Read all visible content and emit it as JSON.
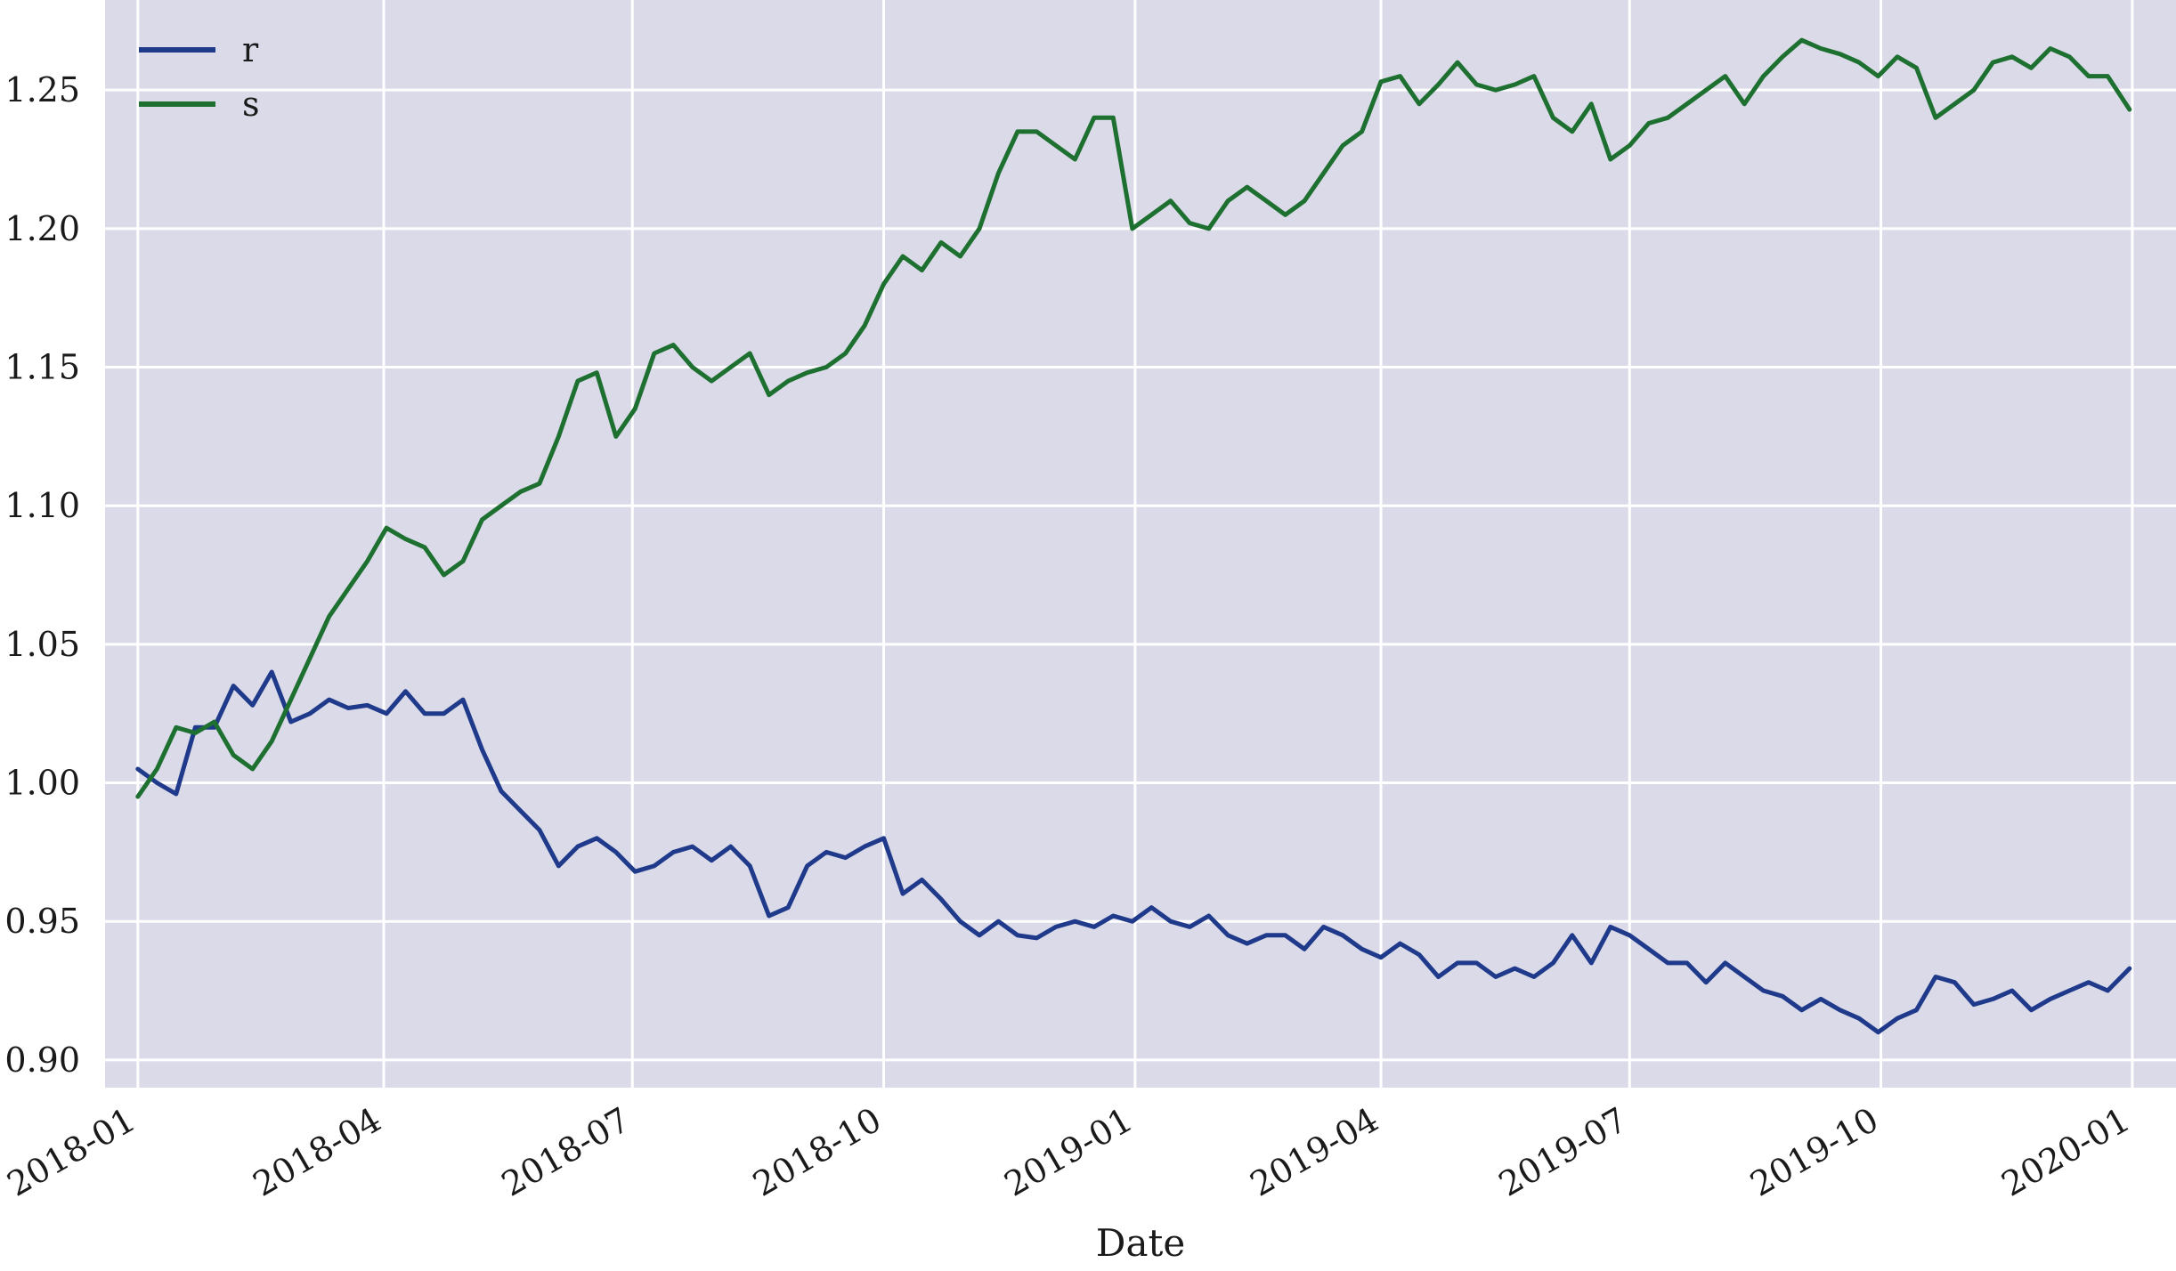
{
  "chart_data": {
    "type": "line",
    "xlabel": "Date",
    "ylabel": "",
    "title": "",
    "x_axis_type": "date",
    "xlim": [
      "2017-12-20",
      "2020-01-17"
    ],
    "ylim": [
      0.89,
      1.2825
    ],
    "grid": true,
    "legend_position": "top-left",
    "background_color": "#dadae8",
    "grid_color": "#ffffff",
    "x_ticks": [
      "2018-01-01",
      "2018-04-01",
      "2018-07-01",
      "2018-10-01",
      "2019-01-01",
      "2019-04-01",
      "2019-07-01",
      "2019-10-01",
      "2020-01-01"
    ],
    "x_tick_labels": [
      "2018-01",
      "2018-04",
      "2018-07",
      "2018-10",
      "2019-01",
      "2019-04",
      "2019-07",
      "2019-10",
      "2020-01"
    ],
    "y_ticks": [
      0.9,
      0.95,
      1.0,
      1.05,
      1.1,
      1.15,
      1.2,
      1.25
    ],
    "y_tick_labels": [
      "0.90",
      "0.95",
      "1.00",
      "1.05",
      "1.10",
      "1.15",
      "1.20",
      "1.25"
    ],
    "series": [
      {
        "name": "r",
        "color": "#1f3a8a",
        "x": [
          "2018-01-01",
          "2018-01-08",
          "2018-01-15",
          "2018-01-22",
          "2018-01-29",
          "2018-02-05",
          "2018-02-12",
          "2018-02-19",
          "2018-02-26",
          "2018-03-05",
          "2018-03-12",
          "2018-03-19",
          "2018-03-26",
          "2018-04-02",
          "2018-04-09",
          "2018-04-16",
          "2018-04-23",
          "2018-04-30",
          "2018-05-07",
          "2018-05-14",
          "2018-05-21",
          "2018-05-28",
          "2018-06-04",
          "2018-06-11",
          "2018-06-18",
          "2018-06-25",
          "2018-07-02",
          "2018-07-09",
          "2018-07-16",
          "2018-07-23",
          "2018-07-30",
          "2018-08-06",
          "2018-08-13",
          "2018-08-20",
          "2018-08-27",
          "2018-09-03",
          "2018-09-10",
          "2018-09-17",
          "2018-09-24",
          "2018-10-01",
          "2018-10-08",
          "2018-10-15",
          "2018-10-22",
          "2018-10-29",
          "2018-11-05",
          "2018-11-12",
          "2018-11-19",
          "2018-11-26",
          "2018-12-03",
          "2018-12-10",
          "2018-12-17",
          "2018-12-24",
          "2018-12-31",
          "2019-01-07",
          "2019-01-14",
          "2019-01-21",
          "2019-01-28",
          "2019-02-04",
          "2019-02-11",
          "2019-02-18",
          "2019-02-25",
          "2019-03-04",
          "2019-03-11",
          "2019-03-18",
          "2019-03-25",
          "2019-04-01",
          "2019-04-08",
          "2019-04-15",
          "2019-04-22",
          "2019-04-29",
          "2019-05-06",
          "2019-05-13",
          "2019-05-20",
          "2019-05-27",
          "2019-06-03",
          "2019-06-10",
          "2019-06-17",
          "2019-06-24",
          "2019-07-01",
          "2019-07-08",
          "2019-07-15",
          "2019-07-22",
          "2019-07-29",
          "2019-08-05",
          "2019-08-12",
          "2019-08-19",
          "2019-08-26",
          "2019-09-02",
          "2019-09-09",
          "2019-09-16",
          "2019-09-23",
          "2019-09-30",
          "2019-10-07",
          "2019-10-14",
          "2019-10-21",
          "2019-10-28",
          "2019-11-04",
          "2019-11-11",
          "2019-11-18",
          "2019-11-25",
          "2019-12-02",
          "2019-12-09",
          "2019-12-16",
          "2019-12-23",
          "2019-12-31"
        ],
        "y": [
          1.005,
          1.0,
          0.996,
          1.02,
          1.02,
          1.035,
          1.028,
          1.04,
          1.022,
          1.025,
          1.03,
          1.027,
          1.028,
          1.025,
          1.033,
          1.025,
          1.025,
          1.03,
          1.012,
          0.997,
          0.99,
          0.983,
          0.97,
          0.977,
          0.98,
          0.975,
          0.968,
          0.97,
          0.975,
          0.977,
          0.972,
          0.977,
          0.97,
          0.952,
          0.955,
          0.97,
          0.975,
          0.973,
          0.977,
          0.98,
          0.96,
          0.965,
          0.958,
          0.95,
          0.945,
          0.95,
          0.945,
          0.944,
          0.948,
          0.95,
          0.948,
          0.952,
          0.95,
          0.955,
          0.95,
          0.948,
          0.952,
          0.945,
          0.942,
          0.945,
          0.945,
          0.94,
          0.948,
          0.945,
          0.94,
          0.937,
          0.942,
          0.938,
          0.93,
          0.935,
          0.935,
          0.93,
          0.933,
          0.93,
          0.935,
          0.945,
          0.935,
          0.948,
          0.945,
          0.94,
          0.935,
          0.935,
          0.928,
          0.935,
          0.93,
          0.925,
          0.923,
          0.918,
          0.922,
          0.918,
          0.915,
          0.91,
          0.915,
          0.918,
          0.93,
          0.928,
          0.92,
          0.922,
          0.925,
          0.918,
          0.922,
          0.925,
          0.928,
          0.925,
          0.933
        ]
      },
      {
        "name": "s",
        "color": "#1e7031",
        "x": [
          "2018-01-01",
          "2018-01-08",
          "2018-01-15",
          "2018-01-22",
          "2018-01-29",
          "2018-02-05",
          "2018-02-12",
          "2018-02-19",
          "2018-02-26",
          "2018-03-05",
          "2018-03-12",
          "2018-03-19",
          "2018-03-26",
          "2018-04-02",
          "2018-04-09",
          "2018-04-16",
          "2018-04-23",
          "2018-04-30",
          "2018-05-07",
          "2018-05-14",
          "2018-05-21",
          "2018-05-28",
          "2018-06-04",
          "2018-06-11",
          "2018-06-18",
          "2018-06-25",
          "2018-07-02",
          "2018-07-09",
          "2018-07-16",
          "2018-07-23",
          "2018-07-30",
          "2018-08-06",
          "2018-08-13",
          "2018-08-20",
          "2018-08-27",
          "2018-09-03",
          "2018-09-10",
          "2018-09-17",
          "2018-09-24",
          "2018-10-01",
          "2018-10-08",
          "2018-10-15",
          "2018-10-22",
          "2018-10-29",
          "2018-11-05",
          "2018-11-12",
          "2018-11-19",
          "2018-11-26",
          "2018-12-03",
          "2018-12-10",
          "2018-12-17",
          "2018-12-24",
          "2018-12-31",
          "2019-01-07",
          "2019-01-14",
          "2019-01-21",
          "2019-01-28",
          "2019-02-04",
          "2019-02-11",
          "2019-02-18",
          "2019-02-25",
          "2019-03-04",
          "2019-03-11",
          "2019-03-18",
          "2019-03-25",
          "2019-04-01",
          "2019-04-08",
          "2019-04-15",
          "2019-04-22",
          "2019-04-29",
          "2019-05-06",
          "2019-05-13",
          "2019-05-20",
          "2019-05-27",
          "2019-06-03",
          "2019-06-10",
          "2019-06-17",
          "2019-06-24",
          "2019-07-01",
          "2019-07-08",
          "2019-07-15",
          "2019-07-22",
          "2019-07-29",
          "2019-08-05",
          "2019-08-12",
          "2019-08-19",
          "2019-08-26",
          "2019-09-02",
          "2019-09-09",
          "2019-09-16",
          "2019-09-23",
          "2019-09-30",
          "2019-10-07",
          "2019-10-14",
          "2019-10-21",
          "2019-10-28",
          "2019-11-04",
          "2019-11-11",
          "2019-11-18",
          "2019-11-25",
          "2019-12-02",
          "2019-12-09",
          "2019-12-16",
          "2019-12-23",
          "2019-12-31"
        ],
        "y": [
          0.995,
          1.005,
          1.02,
          1.018,
          1.022,
          1.01,
          1.005,
          1.015,
          1.03,
          1.045,
          1.06,
          1.07,
          1.08,
          1.092,
          1.088,
          1.085,
          1.075,
          1.08,
          1.095,
          1.1,
          1.105,
          1.108,
          1.125,
          1.145,
          1.148,
          1.125,
          1.135,
          1.155,
          1.158,
          1.15,
          1.145,
          1.15,
          1.155,
          1.14,
          1.145,
          1.148,
          1.15,
          1.155,
          1.165,
          1.18,
          1.19,
          1.185,
          1.195,
          1.19,
          1.2,
          1.22,
          1.235,
          1.235,
          1.23,
          1.225,
          1.24,
          1.24,
          1.2,
          1.205,
          1.21,
          1.202,
          1.2,
          1.21,
          1.215,
          1.21,
          1.205,
          1.21,
          1.22,
          1.23,
          1.235,
          1.253,
          1.255,
          1.245,
          1.252,
          1.26,
          1.252,
          1.25,
          1.252,
          1.255,
          1.24,
          1.235,
          1.245,
          1.225,
          1.23,
          1.238,
          1.24,
          1.245,
          1.25,
          1.255,
          1.245,
          1.255,
          1.262,
          1.268,
          1.265,
          1.263,
          1.26,
          1.255,
          1.262,
          1.258,
          1.24,
          1.245,
          1.25,
          1.26,
          1.262,
          1.258,
          1.265,
          1.262,
          1.255,
          1.255,
          1.243
        ]
      }
    ]
  }
}
